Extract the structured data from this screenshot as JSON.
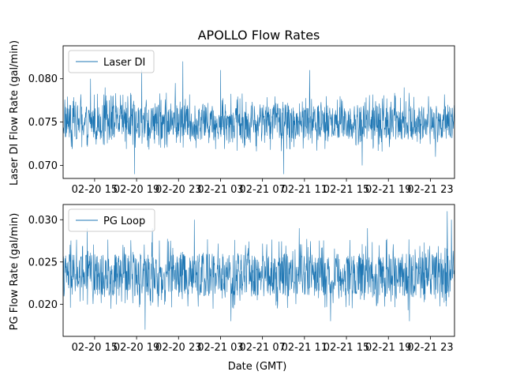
{
  "chart_data": [
    {
      "type": "line",
      "title": "APOLLO Flow Rates",
      "xlabel": "",
      "ylabel": "Laser DI Flow Rate (gal/min)",
      "series": [
        {
          "name": "Laser DI",
          "color": "#1f77b4",
          "baseline": 0.0755,
          "band": [
            0.073,
            0.077
          ],
          "spikes": [
            {
              "t": 0.6,
              "v": 0.08
            },
            {
              "t": 2.0,
              "v": 0.079
            },
            {
              "t": 4.8,
              "v": 0.069
            },
            {
              "t": 5.5,
              "v": 0.081
            },
            {
              "t": 8.7,
              "v": 0.0795
            },
            {
              "t": 9.4,
              "v": 0.082
            },
            {
              "t": 13.0,
              "v": 0.081
            },
            {
              "t": 19.0,
              "v": 0.069
            },
            {
              "t": 21.5,
              "v": 0.081
            },
            {
              "t": 26.5,
              "v": 0.07
            },
            {
              "t": 30.5,
              "v": 0.079
            },
            {
              "t": 33.5,
              "v": 0.071
            }
          ]
        }
      ],
      "x_range_hours": [
        -2,
        35.3
      ],
      "xtick_hours": [
        1,
        5,
        9,
        13,
        17,
        21,
        25,
        29,
        33
      ],
      "xticks": [
        "02-20 15",
        "02-20 19",
        "02-20 23",
        "02-21 03",
        "02-21 07",
        "02-21 11",
        "02-21 15",
        "02-21 19",
        "02-21 23"
      ],
      "yticks": [
        0.07,
        0.075,
        0.08
      ],
      "ytick_labels": [
        "0.070",
        "0.075",
        "0.080"
      ],
      "ylim": [
        0.0685,
        0.0838
      ],
      "legend": "upper left"
    },
    {
      "type": "line",
      "title": "",
      "xlabel": "Date (GMT)",
      "ylabel": "PG Flow Rate (gal/min)",
      "series": [
        {
          "name": "PG Loop",
          "color": "#1f77b4",
          "baseline": 0.0237,
          "band": [
            0.021,
            0.026
          ],
          "spikes": [
            {
              "t": 0.3,
              "v": 0.029
            },
            {
              "t": 5.8,
              "v": 0.017
            },
            {
              "t": 6.5,
              "v": 0.029
            },
            {
              "t": 10.5,
              "v": 0.03
            },
            {
              "t": 14.0,
              "v": 0.018
            },
            {
              "t": 20.5,
              "v": 0.029
            },
            {
              "t": 23.5,
              "v": 0.018
            },
            {
              "t": 27.0,
              "v": 0.029
            },
            {
              "t": 31.0,
              "v": 0.018
            },
            {
              "t": 34.6,
              "v": 0.031
            },
            {
              "t": 35.0,
              "v": 0.03
            }
          ]
        }
      ],
      "x_range_hours": [
        -2,
        35.3
      ],
      "xtick_hours": [
        1,
        5,
        9,
        13,
        17,
        21,
        25,
        29,
        33
      ],
      "xticks": [
        "02-20 15",
        "02-20 19",
        "02-20 23",
        "02-21 03",
        "02-21 07",
        "02-21 11",
        "02-21 15",
        "02-21 19",
        "02-21 23"
      ],
      "yticks": [
        0.02,
        0.025,
        0.03
      ],
      "ytick_labels": [
        "0.020",
        "0.025",
        "0.030"
      ],
      "ylim": [
        0.0162,
        0.0318
      ],
      "legend": "upper left"
    }
  ]
}
